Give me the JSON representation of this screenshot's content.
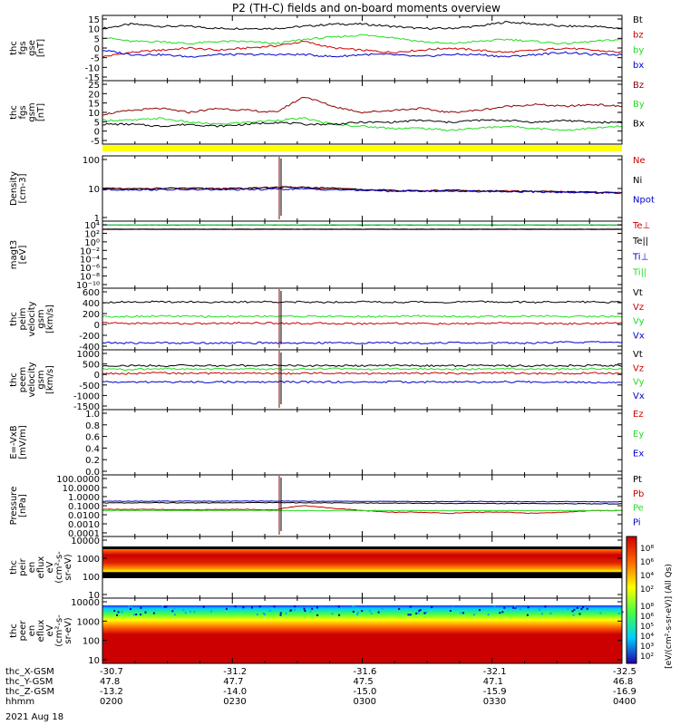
{
  "title": "P2 (TH-C) fields and on-board moments overview",
  "colors": {
    "black": "#000000",
    "red": "#cc0000",
    "darkred": "#8b0000",
    "green": "#22dd22",
    "blue": "#0000cc",
    "yellow": "#ffff00"
  },
  "time_axis": {
    "ticks": [
      "0200",
      "0230",
      "0300",
      "0330",
      "0400"
    ],
    "date": "2021 Aug 18",
    "ephemeris": [
      {
        "label": "thc_X-GSM",
        "values": [
          "-30.7",
          "-31.2",
          "-31.6",
          "-32.1",
          "-32.5"
        ]
      },
      {
        "label": "thc_Y-GSM",
        "values": [
          "47.8",
          "47.7",
          "47.5",
          "47.1",
          "46.8"
        ]
      },
      {
        "label": "thc_Z-GSM",
        "values": [
          "-13.2",
          "-14.0",
          "-15.0",
          "-15.9",
          "-16.9"
        ]
      },
      {
        "label": "hhmm",
        "values": [
          "0200",
          "0230",
          "0300",
          "0330",
          "0400"
        ]
      }
    ]
  },
  "chart_data": [
    {
      "type": "line",
      "id": "fgs_gse",
      "ylabel": [
        "thc",
        "fgs",
        "gse",
        "[nT]"
      ],
      "yticks": [
        "15",
        "10",
        "5",
        "0",
        "-5",
        "-10",
        "-15"
      ],
      "ylim": [
        -15,
        15
      ],
      "series": [
        {
          "name": "Bt",
          "color": "black",
          "values": [
            9,
            11,
            10,
            10,
            9,
            9,
            9,
            10,
            11,
            11,
            10,
            9,
            9,
            10,
            12,
            11,
            10,
            10,
            9
          ]
        },
        {
          "name": "bz",
          "color": "red",
          "values": [
            -4,
            -2,
            -1,
            0,
            -1,
            0,
            1,
            3,
            0,
            -1,
            -2,
            -1,
            0,
            -1,
            -2,
            -1,
            0,
            -1,
            -2
          ]
        },
        {
          "name": "by",
          "color": "green",
          "values": [
            5,
            3,
            3,
            2,
            3,
            3,
            2,
            4,
            5,
            6,
            5,
            3,
            2,
            3,
            4,
            3,
            2,
            3,
            4
          ]
        },
        {
          "name": "bx",
          "color": "blue",
          "values": [
            -1,
            -3,
            -3,
            -4,
            -3,
            -3,
            -3,
            -3,
            -4,
            -3,
            -3,
            -4,
            -3,
            -3,
            -4,
            -3,
            -2,
            -3,
            -3
          ]
        }
      ]
    },
    {
      "type": "line",
      "id": "fgs_gsm",
      "ylabel": [
        "thc",
        "fgs",
        "gsm",
        "[nT]"
      ],
      "yticks": [
        "25",
        "20",
        "15",
        "10",
        "5",
        "0",
        "-5"
      ],
      "ylim": [
        -7,
        25
      ],
      "series": [
        {
          "name": "Bz",
          "color": "darkred",
          "values": [
            8,
            10,
            11,
            9,
            11,
            10,
            9,
            17,
            12,
            9,
            10,
            11,
            9,
            10,
            12,
            13,
            12,
            13,
            12
          ]
        },
        {
          "name": "By",
          "color": "green",
          "values": [
            5,
            5,
            6,
            4,
            3,
            4,
            5,
            6,
            3,
            2,
            1,
            1,
            0,
            1,
            2,
            1,
            0,
            1,
            2
          ]
        },
        {
          "name": "Bx",
          "color": "black",
          "values": [
            3,
            3,
            2,
            3,
            2,
            3,
            4,
            3,
            3,
            4,
            4,
            5,
            4,
            5,
            5,
            4,
            5,
            4,
            4
          ]
        }
      ]
    },
    {
      "type": "line",
      "id": "density",
      "log": true,
      "ylabel": [
        "Density",
        "[cm-3]"
      ],
      "yticks": [
        "100",
        "10",
        "1"
      ],
      "ylim": [
        0.4,
        200
      ],
      "series": [
        {
          "name": "Ne",
          "color": "red",
          "values": [
            9,
            8.5,
            9,
            9,
            8.8,
            9,
            10,
            10,
            9,
            8,
            7.5,
            7,
            7.5,
            7,
            7,
            6.8,
            6.5,
            6.2,
            6
          ]
        },
        {
          "name": "Ni",
          "color": "black",
          "values": [
            9,
            8.5,
            9,
            9,
            8.8,
            9,
            10,
            10,
            9,
            8,
            7.5,
            7,
            7.5,
            7,
            7,
            6.8,
            6.5,
            6.2,
            6
          ]
        },
        {
          "name": "Npot",
          "color": "blue",
          "values": [
            8,
            8,
            8,
            8,
            8,
            8,
            8.5,
            8.5,
            8,
            7.5,
            7,
            7,
            7,
            6.8,
            6.8,
            6.5,
            6.3,
            6,
            5.8
          ]
        }
      ]
    },
    {
      "type": "line",
      "id": "temperature",
      "log": true,
      "ylabel": [
        "magt3",
        "[eV]"
      ],
      "yticks": [
        "10⁴",
        "10²",
        "10⁰",
        "10⁻²",
        "10⁻⁴",
        "10⁻⁶",
        "10⁻⁸",
        "10⁻¹⁰"
      ],
      "ylim": [
        1e-11,
        20000.0
      ],
      "series": [
        {
          "name": "Te⊥",
          "color": "red",
          "values": [
            250,
            250,
            250,
            250,
            250,
            250,
            250,
            250,
            250,
            250,
            250,
            250,
            250,
            250,
            250,
            250,
            250,
            250,
            250
          ]
        },
        {
          "name": "Te||",
          "color": "black",
          "values": [
            300,
            300,
            300,
            300,
            300,
            300,
            300,
            300,
            300,
            300,
            300,
            300,
            300,
            300,
            300,
            300,
            300,
            300,
            300
          ]
        },
        {
          "name": "Ti⊥",
          "color": "blue",
          "values": [
            2500,
            2500,
            2500,
            2500,
            2500,
            2500,
            2500,
            2500,
            2500,
            2500,
            2500,
            2500,
            2500,
            2500,
            2500,
            2500,
            2500,
            2500,
            2500
          ]
        },
        {
          "name": "Ti||",
          "color": "green",
          "values": [
            2800,
            2800,
            2800,
            2800,
            2800,
            2800,
            2800,
            2800,
            2800,
            2800,
            2800,
            2800,
            2800,
            2800,
            2800,
            2800,
            2800,
            2800,
            2800
          ]
        }
      ]
    },
    {
      "type": "line",
      "id": "peim_velocity",
      "ylabel": [
        "thc",
        "peim",
        "velocity",
        "gsm",
        "[km/s]"
      ],
      "yticks": [
        "600",
        "400",
        "200",
        "0",
        "-200",
        "-400"
      ],
      "ylim": [
        -450,
        600
      ],
      "series": [
        {
          "name": "Vt",
          "color": "black",
          "values": [
            360,
            370,
            365,
            370,
            360,
            365,
            370,
            360,
            365,
            370,
            360,
            365,
            360,
            370,
            365,
            360,
            370,
            365,
            360
          ]
        },
        {
          "name": "Vz",
          "color": "red",
          "values": [
            10,
            0,
            5,
            -5,
            0,
            10,
            5,
            0,
            0,
            -5,
            5,
            0,
            -10,
            0,
            5,
            0,
            -5,
            0,
            5
          ]
        },
        {
          "name": "Vy",
          "color": "green",
          "values": [
            120,
            120,
            125,
            120,
            115,
            120,
            125,
            120,
            120,
            115,
            120,
            125,
            120,
            115,
            120,
            125,
            120,
            120,
            120
          ]
        },
        {
          "name": "Vx",
          "color": "blue",
          "values": [
            -330,
            -335,
            -330,
            -335,
            -330,
            -335,
            -330,
            -335,
            -330,
            -335,
            -330,
            -335,
            -330,
            -335,
            -330,
            -335,
            -320,
            -320,
            -320
          ]
        }
      ]
    },
    {
      "type": "line",
      "id": "peem_velocity",
      "ylabel": [
        "thc",
        "peem",
        "velocity",
        "gsm",
        "[km/s]"
      ],
      "yticks": [
        "1000",
        "500",
        "0",
        "-500",
        "-1000",
        "-1500"
      ],
      "ylim": [
        -1600,
        1200
      ],
      "series": [
        {
          "name": "Vt",
          "color": "black",
          "values": [
            450,
            460,
            450,
            470,
            450,
            460,
            480,
            450,
            460,
            450,
            470,
            460,
            450,
            470,
            460,
            450,
            460,
            470,
            460
          ]
        },
        {
          "name": "Vz",
          "color": "red",
          "values": [
            100,
            80,
            120,
            90,
            100,
            110,
            90,
            100,
            120,
            90,
            100,
            110,
            90,
            100,
            120,
            90,
            100,
            110,
            100
          ]
        },
        {
          "name": "Vy",
          "color": "green",
          "values": [
            300,
            280,
            320,
            290,
            300,
            310,
            290,
            300,
            320,
            290,
            300,
            310,
            290,
            300,
            320,
            290,
            300,
            310,
            300
          ]
        },
        {
          "name": "Vx",
          "color": "blue",
          "values": [
            -300,
            -320,
            -300,
            -310,
            -300,
            -320,
            -300,
            -310,
            -300,
            -320,
            -300,
            -310,
            -300,
            -320,
            -300,
            -310,
            -300,
            -320,
            -300
          ]
        }
      ]
    },
    {
      "type": "line",
      "id": "efield",
      "ylabel": [
        "E=-VxB",
        "[mV/m]"
      ],
      "yticks": [
        "1.0",
        "0.8",
        "0.6",
        "0.4",
        "0.2",
        "0.0"
      ],
      "ylim": [
        0,
        1
      ],
      "series": [
        {
          "name": "Ez",
          "color": "red",
          "values": []
        },
        {
          "name": "Ey",
          "color": "green",
          "values": []
        },
        {
          "name": "Ex",
          "color": "blue",
          "values": []
        }
      ]
    },
    {
      "type": "line",
      "id": "pressure",
      "log": true,
      "ylabel": [
        "Pressure",
        "[nPa]"
      ],
      "yticks": [
        "100.0000",
        "10.0000",
        "1.0000",
        "0.1000",
        "0.0100",
        "0.0010",
        "0.0001"
      ],
      "ylim": [
        5e-05,
        200
      ],
      "series": [
        {
          "name": "Pt",
          "color": "black",
          "values": [
            0.2,
            0.2,
            0.21,
            0.2,
            0.2,
            0.21,
            0.22,
            0.2,
            0.2,
            0.19,
            0.19,
            0.18,
            0.18,
            0.18,
            0.17,
            0.17,
            0.17,
            0.16,
            0.16
          ]
        },
        {
          "name": "Pb",
          "color": "red",
          "values": [
            0.04,
            0.04,
            0.04,
            0.035,
            0.04,
            0.04,
            0.035,
            0.1,
            0.05,
            0.03,
            0.02,
            0.02,
            0.015,
            0.02,
            0.02,
            0.015,
            0.02,
            0.03,
            0.03
          ]
        },
        {
          "name": "Pe",
          "color": "green",
          "values": [
            0.03,
            0.03,
            0.03,
            0.03,
            0.03,
            0.03,
            0.03,
            0.03,
            0.03,
            0.03,
            0.03,
            0.03,
            0.03,
            0.03,
            0.03,
            0.03,
            0.03,
            0.03,
            0.03
          ]
        },
        {
          "name": "Pi",
          "color": "blue",
          "values": [
            0.3,
            0.3,
            0.31,
            0.3,
            0.3,
            0.31,
            0.32,
            0.3,
            0.3,
            0.29,
            0.29,
            0.28,
            0.28,
            0.28,
            0.27,
            0.27,
            0.27,
            0.26,
            0.26
          ]
        }
      ]
    },
    {
      "type": "heatmap",
      "id": "peir",
      "ylabel": [
        "thc",
        "peir",
        "en",
        "eflux",
        "eV",
        "(cm²-s-",
        "sr-eV)"
      ],
      "yticks": [
        "10000",
        "1000",
        "100",
        "10"
      ],
      "ylim": [
        4,
        10000
      ]
    },
    {
      "type": "heatmap",
      "id": "peer",
      "ylabel": [
        "thc",
        "peer",
        "en",
        "eflux",
        "eV",
        "(cm²-s-",
        "sr-eV)"
      ],
      "yticks": [
        "10000",
        "1000",
        "100",
        "10"
      ],
      "ylim": [
        5,
        10000
      ]
    }
  ],
  "colorbar": {
    "label": "[eV/(cm²-s-sr-eV)] (All Qs)",
    "ticks_top": [
      "10⁸",
      "10⁶",
      "10⁴",
      "10²"
    ],
    "ticks_bottom": [
      "10⁸",
      "10⁶",
      "10⁵",
      "10⁴",
      "10³",
      "10²"
    ]
  }
}
